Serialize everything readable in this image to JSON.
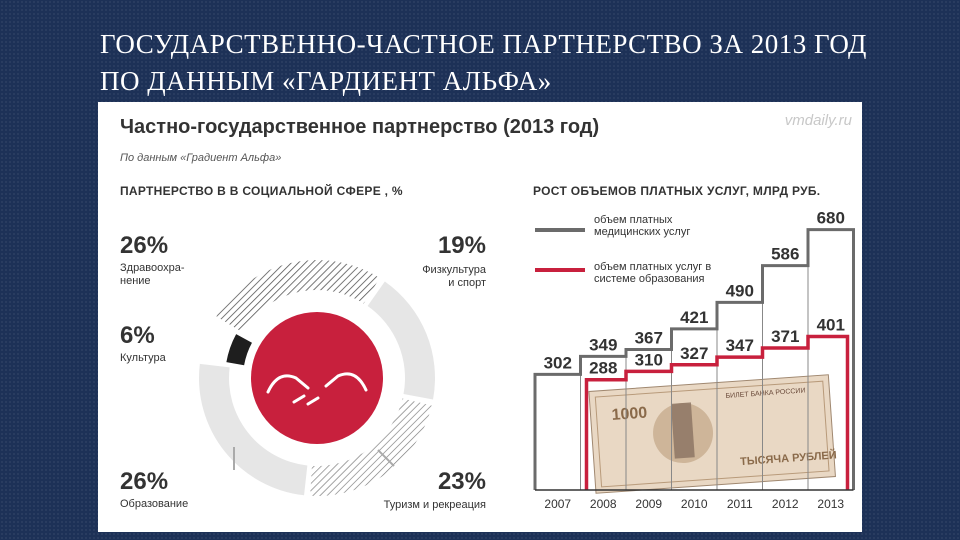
{
  "slide": {
    "title": "ГОСУДАРСТВЕННО-ЧАСТНОЕ ПАРТНЕРСТВО ЗА 2013 ГОД ПО ДАННЫМ «ГАРДИЕНТ АЛЬФА»"
  },
  "infographic": {
    "title": "Частно-государственное партнерство (2013 год)",
    "watermark": "vmdaily.ru",
    "source": "По данным «Градиент Альфа»"
  },
  "chart_data": [
    {
      "type": "pie",
      "title": "ПАРТНЕРСТВО В В СОЦИАЛЬНОЙ СФЕРЕ , %",
      "slices": [
        {
          "label": "Здравоохра-\nнение",
          "value": 26,
          "display": "26%",
          "style": "hatched-dark",
          "position": "top-left"
        },
        {
          "label": "Физкультура\nи спорт",
          "value": 19,
          "display": "19%",
          "style": "light-gray",
          "position": "top-right"
        },
        {
          "label": "Туризм и рекреация",
          "value": 23,
          "display": "23%",
          "style": "hatched",
          "position": "bottom-right"
        },
        {
          "label": "Образование",
          "value": 26,
          "display": "26%",
          "style": "light-gray",
          "position": "bottom-left"
        },
        {
          "label": "Культура",
          "value": 6,
          "display": "6%",
          "style": "black",
          "position": "left"
        }
      ],
      "center_color": "#c8203d"
    },
    {
      "type": "line",
      "subtype": "step",
      "title": "РОСТ ОБЪЕМОВ ПЛАТНЫХ УСЛУГ, МЛРД РУБ.",
      "x": [
        "2007",
        "2008",
        "2009",
        "2010",
        "2011",
        "2012",
        "2013"
      ],
      "series": [
        {
          "name": "объем платных медицинских услуг",
          "color": "#6b6b6b",
          "values": [
            302,
            349,
            367,
            421,
            490,
            586,
            680
          ]
        },
        {
          "name": "объем платных услуг в системе образования",
          "color": "#c8203d",
          "values": [
            null,
            288,
            310,
            327,
            347,
            371,
            401
          ]
        }
      ],
      "ylim": [
        0,
        700
      ],
      "grid": false,
      "legend": "top-left"
    }
  ],
  "colors": {
    "accent_red": "#c8203d",
    "gray": "#6b6b6b",
    "background": "#1d3157"
  }
}
